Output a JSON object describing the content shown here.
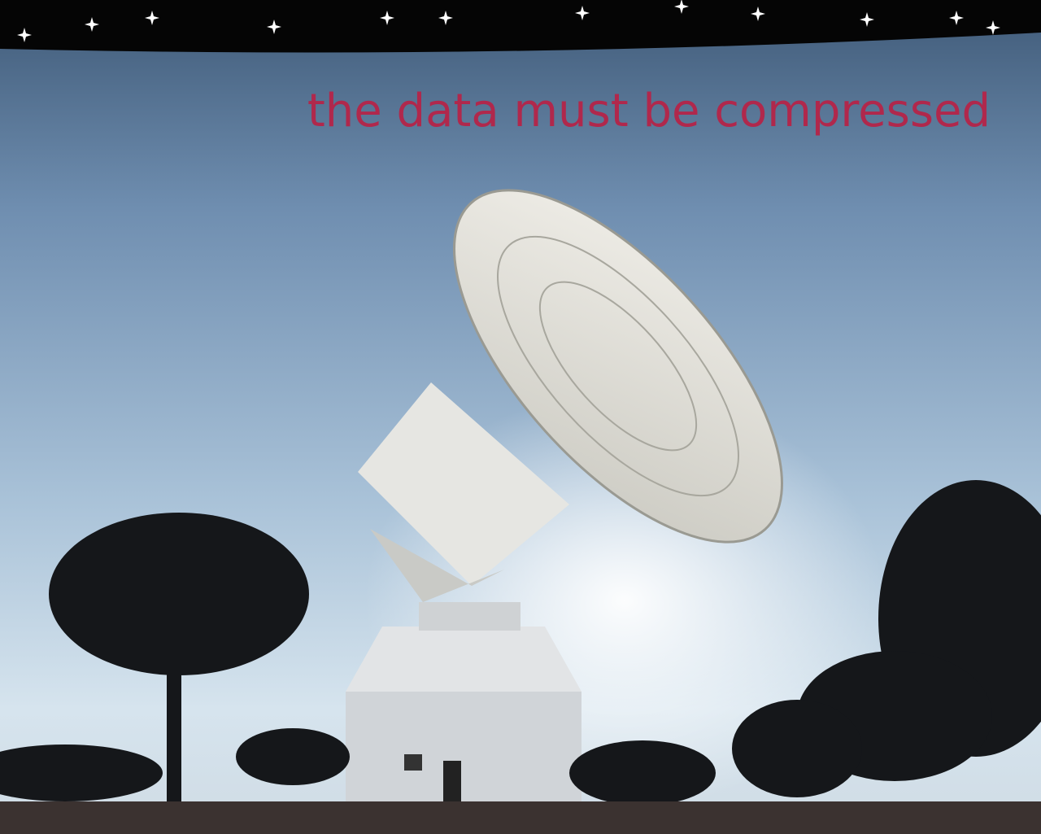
{
  "caption": "the data must be compressed"
}
